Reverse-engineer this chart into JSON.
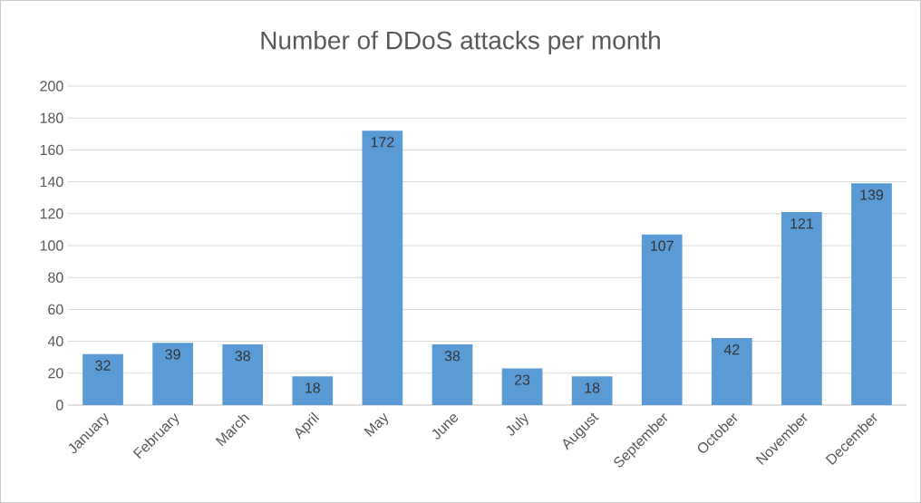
{
  "chart_data": {
    "type": "bar",
    "title": "Number of DDoS attacks per month",
    "categories": [
      "January",
      "February",
      "March",
      "April",
      "May",
      "June",
      "July",
      "August",
      "September",
      "October",
      "November",
      "December"
    ],
    "values": [
      32,
      39,
      38,
      18,
      172,
      38,
      23,
      18,
      107,
      42,
      121,
      139
    ],
    "color": "#5b9bd5",
    "ylim": [
      0,
      200
    ],
    "yticks": [
      0,
      20,
      40,
      60,
      80,
      100,
      120,
      140,
      160,
      180,
      200
    ],
    "grid": "y",
    "data_labels": true
  }
}
